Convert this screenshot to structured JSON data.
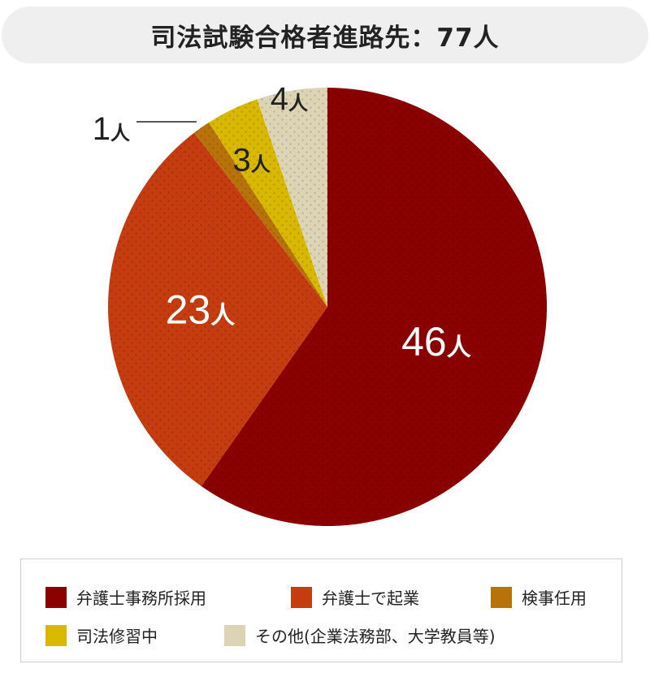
{
  "title": "司法試験合格者進路先：77人",
  "chart_data": {
    "type": "pie",
    "categories": [
      "弁護士事務所採用",
      "弁護士で起業",
      "検事任用",
      "司法修習中",
      "その他(企業法務部、大学教員等)"
    ],
    "values": [
      46,
      23,
      1,
      3,
      4
    ],
    "data_labels": [
      "46人",
      "23人",
      "1人",
      "3人",
      "4人"
    ],
    "total": 77,
    "colors": [
      "#8b0000",
      "#c43c10",
      "#b8720a",
      "#d8b800",
      "#dcd4b4"
    ],
    "start_angle_deg": 0,
    "direction": "clockwise"
  }
}
